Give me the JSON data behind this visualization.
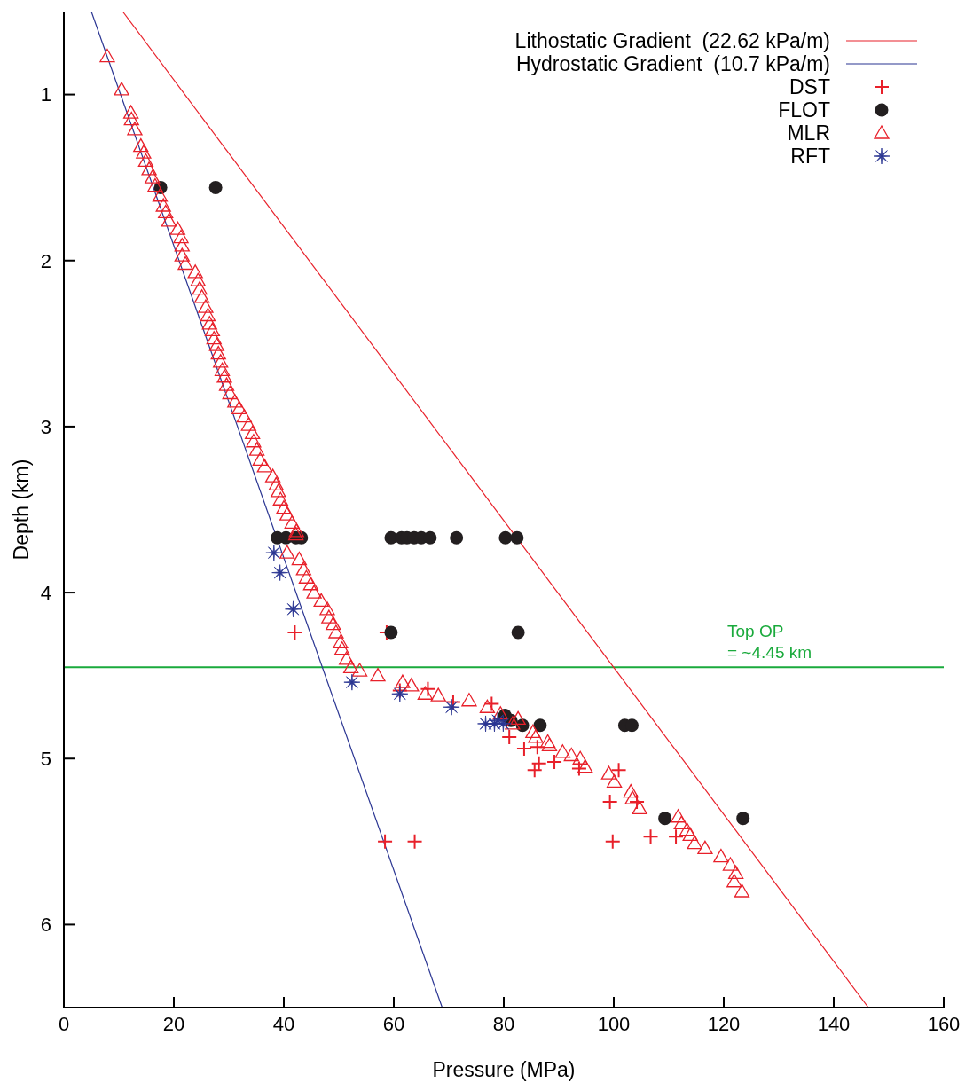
{
  "chart_data": {
    "type": "scatter",
    "xlabel": "Pressure (MPa)",
    "ylabel": "Depth (km)",
    "xlim": [
      0,
      160
    ],
    "xticks": [
      0,
      20,
      40,
      60,
      80,
      100,
      120,
      140,
      160
    ],
    "ylim": [
      6.5,
      0.5
    ],
    "yticks": [
      1,
      2,
      3,
      4,
      5,
      6
    ],
    "grid": false,
    "legend": "top right",
    "series": [
      {
        "name": "Lithostatic Gradient  (22.62 kPa/m)",
        "type": "line",
        "color": "#e8202a",
        "marker": "none",
        "line_style": "solid",
        "x": [
          10.7,
          146.3
        ],
        "values": [
          0.5,
          6.5
        ]
      },
      {
        "name": "Hydrostatic Gradient  (10.7 kPa/m)",
        "type": "line",
        "color": "#2a3592",
        "marker": "none",
        "line_style": "solid",
        "x": [
          5.0,
          68.8
        ],
        "values": [
          0.5,
          6.5
        ]
      },
      {
        "name": "DST",
        "type": "scatter",
        "color": "#e8202a",
        "marker": "cross",
        "x": [
          42.0,
          58.7,
          66.2,
          61.1,
          70.8,
          77.8,
          81.0,
          83.7,
          86.1,
          86.4,
          85.6,
          89.2,
          93.7,
          100.9,
          99.3,
          104.2,
          106.7,
          111.3,
          99.8,
          58.4,
          63.8
        ],
        "values": [
          4.24,
          4.24,
          4.58,
          4.59,
          4.66,
          4.67,
          4.87,
          4.94,
          4.93,
          5.03,
          5.07,
          5.02,
          5.06,
          5.07,
          5.26,
          5.26,
          5.47,
          5.47,
          5.5,
          5.5,
          5.5
        ]
      },
      {
        "name": "FLOT",
        "type": "scatter",
        "color": "#231f20",
        "marker": "circle",
        "x": [
          17.6,
          27.6,
          38.8,
          40.4,
          42.2,
          43.2,
          59.5,
          61.4,
          62.4,
          63.7,
          65.0,
          66.6,
          71.4,
          80.3,
          82.4,
          59.5,
          82.6,
          80.2,
          81.3,
          83.4,
          86.6,
          102.0,
          103.3,
          109.3,
          123.5
        ],
        "values": [
          1.56,
          1.56,
          3.67,
          3.67,
          3.67,
          3.67,
          3.67,
          3.67,
          3.67,
          3.67,
          3.67,
          3.67,
          3.67,
          3.67,
          3.67,
          4.24,
          4.24,
          4.74,
          4.77,
          4.8,
          4.8,
          4.8,
          4.8,
          5.36,
          5.36
        ]
      },
      {
        "name": "MLR",
        "type": "scatter",
        "color": "#e8202a",
        "marker": "triangle",
        "x": [
          7.9,
          10.5,
          12.2,
          12.3,
          12.9,
          14.0,
          14.5,
          14.9,
          15.5,
          16.1,
          16.6,
          17.5,
          18.1,
          18.5,
          19.1,
          20.7,
          21.3,
          21.5,
          21.5,
          22.1,
          23.9,
          24.4,
          24.7,
          25.1,
          25.8,
          26.2,
          26.5,
          27.0,
          27.3,
          27.8,
          28.1,
          28.5,
          28.8,
          29.2,
          29.6,
          30.2,
          31.1,
          31.9,
          32.8,
          33.6,
          34.3,
          34.5,
          35.1,
          35.7,
          36.5,
          38.0,
          38.6,
          39.0,
          39.4,
          40.0,
          40.6,
          41.5,
          42.3,
          42.2,
          40.6,
          42.8,
          43.6,
          44.1,
          44.9,
          45.5,
          46.8,
          47.9,
          48.2,
          49.0,
          49.5,
          50.3,
          50.6,
          51.4,
          52.2,
          53.8,
          57.1,
          61.6,
          63.2,
          65.7,
          68.1,
          73.7,
          77.0,
          79.4,
          82.6,
          81.6,
          85.3,
          85.8,
          88.0,
          88.3,
          90.7,
          92.3,
          93.9,
          94.8,
          99.1,
          100.1,
          103.1,
          103.4,
          104.7,
          111.7,
          112.3,
          113.3,
          113.9,
          114.7,
          116.6,
          119.5,
          121.2,
          122.2,
          121.9,
          123.3
        ],
        "values": [
          0.77,
          0.97,
          1.11,
          1.15,
          1.21,
          1.31,
          1.35,
          1.4,
          1.45,
          1.5,
          1.55,
          1.61,
          1.67,
          1.71,
          1.76,
          1.81,
          1.86,
          1.91,
          1.97,
          2.02,
          2.07,
          2.12,
          2.17,
          2.22,
          2.28,
          2.33,
          2.38,
          2.42,
          2.47,
          2.51,
          2.56,
          2.61,
          2.66,
          2.7,
          2.75,
          2.8,
          2.85,
          2.89,
          2.94,
          2.99,
          3.04,
          3.09,
          3.14,
          3.2,
          3.24,
          3.3,
          3.35,
          3.39,
          3.44,
          3.49,
          3.53,
          3.58,
          3.63,
          3.65,
          3.76,
          3.8,
          3.86,
          3.91,
          3.95,
          4.0,
          4.05,
          4.1,
          4.15,
          4.19,
          4.24,
          4.3,
          4.34,
          4.4,
          4.45,
          4.47,
          4.5,
          4.54,
          4.56,
          4.61,
          4.62,
          4.65,
          4.69,
          4.73,
          4.76,
          4.79,
          4.84,
          4.87,
          4.9,
          4.92,
          4.96,
          4.98,
          5.0,
          5.05,
          5.09,
          5.14,
          5.2,
          5.24,
          5.3,
          5.35,
          5.39,
          5.43,
          5.46,
          5.51,
          5.54,
          5.59,
          5.64,
          5.69,
          5.74,
          5.8
        ]
      },
      {
        "name": "RFT",
        "type": "scatter",
        "color": "#2a3592",
        "marker": "star",
        "x": [
          38.2,
          39.3,
          41.7,
          52.4,
          61.1,
          70.5,
          76.7,
          78.3,
          79.9,
          78.9
        ],
        "values": [
          3.76,
          3.88,
          4.1,
          4.54,
          4.61,
          4.69,
          4.79,
          4.79,
          4.79,
          4.77
        ]
      }
    ],
    "ref_lines": [
      {
        "axis": "y",
        "value": 4.45,
        "label": "Top OP\n= ~4.45 km",
        "color": "#1aaa3c",
        "line_style": "solid"
      }
    ]
  }
}
